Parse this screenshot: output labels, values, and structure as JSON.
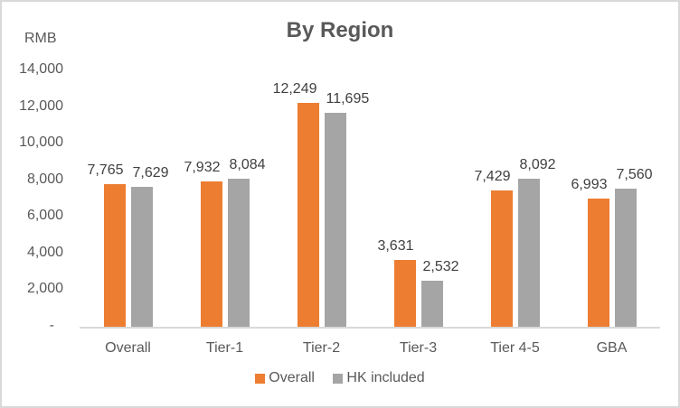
{
  "chart_data": {
    "type": "bar",
    "title": "By Region",
    "ylabel": "RMB",
    "xlabel": "",
    "categories": [
      "Overall",
      "Tier-1",
      "Tier-2",
      "Tier-3",
      "Tier 4-5",
      "GBA"
    ],
    "series": [
      {
        "name": "Overall",
        "color": "#ED7D31",
        "values": [
          7765,
          7932,
          12249,
          3631,
          7429,
          6993
        ],
        "labels": [
          "7,765",
          "7,932",
          "12,249",
          "3,631",
          "7,429",
          "6,993"
        ]
      },
      {
        "name": "HK included",
        "color": "#A5A5A5",
        "values": [
          7629,
          8084,
          11695,
          2532,
          8092,
          7560
        ],
        "labels": [
          "7,629",
          "8,084",
          "11,695",
          "2,532",
          "8,092",
          "7,560"
        ]
      }
    ],
    "yticks": [
      "-",
      "2,000",
      "4,000",
      "6,000",
      "8,000",
      "10,000",
      "12,000",
      "14,000"
    ],
    "ylim": [
      0,
      14000
    ],
    "grid": false,
    "legend_position": "bottom"
  }
}
